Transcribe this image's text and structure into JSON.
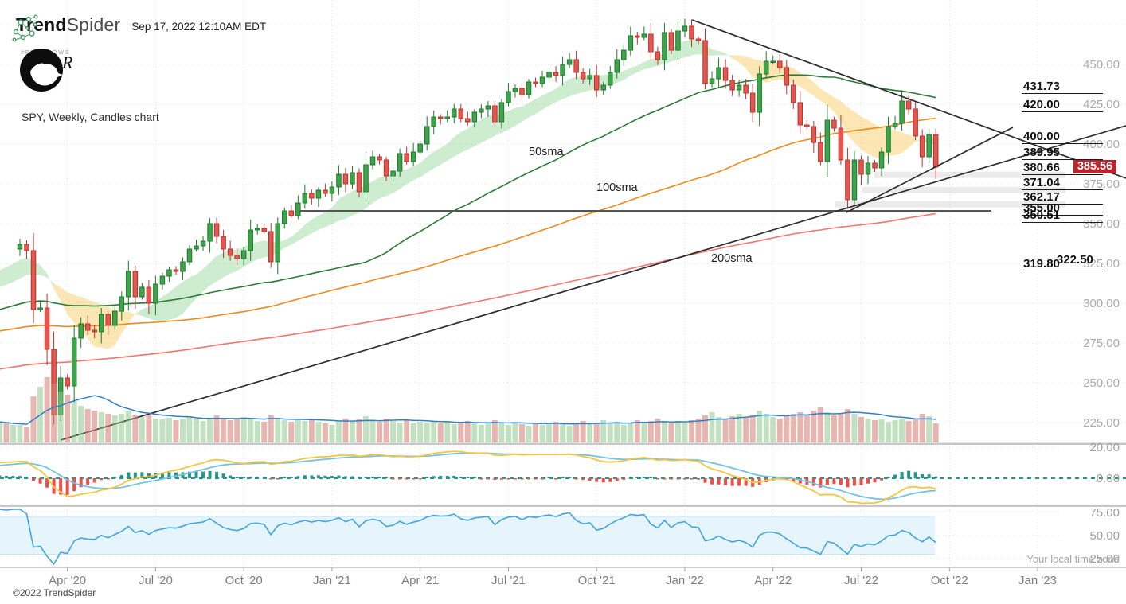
{
  "app": {
    "brand_bold": "Trend",
    "brand_light": "Spider",
    "timestamp": "Sep 17, 2022 12:10AM EDT"
  },
  "watermark": {
    "signature": "R",
    "caption": "#PECKNOWS"
  },
  "footer": {
    "copyright": "©2022 TrendSpider",
    "timezone_note": "Your local time zone"
  },
  "chart_data": {
    "type": "candlestick",
    "title": "SPY, Weekly, Candles chart",
    "symbol": "SPY",
    "timeframe": "Weekly",
    "last_price_label": "385.56",
    "last_price": 385.56,
    "y_axis": [
      450,
      425,
      400,
      375,
      350,
      325,
      300,
      275,
      250,
      225
    ],
    "x_ticks": [
      "Apr '20",
      "Jul '20",
      "Oct '20",
      "Jan '21",
      "Apr '21",
      "Jul '21",
      "Oct '21",
      "Jan '22",
      "Apr '22",
      "Jul '22",
      "Oct '22",
      "Jan '23"
    ],
    "sma_labels": [
      {
        "text": "50sma",
        "x": 664,
        "y": 183
      },
      {
        "text": "100sma",
        "x": 749,
        "y": 228
      },
      {
        "text": "200sma",
        "x": 893,
        "y": 317
      }
    ],
    "indicator_axis": {
      "macd": [
        {
          "label": "20.00",
          "y": 562
        },
        {
          "label": "0.00",
          "y": 601
        }
      ],
      "rsi": [
        {
          "label": "75.00",
          "y": 644
        },
        {
          "label": "50.00",
          "y": 673
        },
        {
          "label": "25.00",
          "y": 702
        }
      ]
    },
    "price_levels": [
      {
        "label": "431.73",
        "p": 431.73
      },
      {
        "label": "420.00",
        "p": 420.0
      },
      {
        "label": "400.00",
        "p": 400.0
      },
      {
        "label": "389.95",
        "p": 389.95
      },
      {
        "label": "380.66",
        "p": 380.66
      },
      {
        "label": "371.04",
        "p": 371.04
      },
      {
        "label": "362.17",
        "p": 362.17
      },
      {
        "label": "355.00",
        "p": 355.0
      },
      {
        "label": "350.51",
        "p": 350.51
      },
      {
        "label": "322.50",
        "p": 322.5,
        "tx": 1327,
        "lx": 1327,
        "lw": 58
      },
      {
        "label": "319.80",
        "p": 319.8
      }
    ],
    "sr_zones": [
      {
        "p": 380.66,
        "x": 1098,
        "x2": 1338
      },
      {
        "p": 371.04,
        "x": 1083,
        "x2": 1338
      },
      {
        "p": 362.17,
        "x": 1048,
        "x2": 1338
      }
    ],
    "trendlines": [
      {
        "name": "descending-resistance",
        "x1": 869,
        "y1": 25,
        "x2": 1414,
        "y2": 224
      },
      {
        "name": "long-ascending-support",
        "x1": 76,
        "y1": 553,
        "x2": 1414,
        "y2": 158
      },
      {
        "name": "steep-ascending-support",
        "x1": 1063,
        "y1": 267,
        "x2": 1272,
        "y2": 160
      }
    ],
    "horizontal_line": {
      "y": 265,
      "x1": 372,
      "x2": 1245
    },
    "closes": [
      337,
      333,
      296,
      297,
      271,
      230,
      253,
      248,
      278,
      287,
      283,
      282,
      293,
      286,
      295,
      304,
      320,
      304,
      310,
      300,
      312,
      317,
      321,
      320,
      326,
      334,
      336,
      339,
      350,
      342,
      334,
      330,
      328,
      333,
      346,
      347,
      345,
      326,
      350,
      358,
      355,
      363,
      369,
      366,
      371,
      369,
      373,
      381,
      375,
      382,
      370,
      387,
      392,
      390,
      380,
      383,
      394,
      389,
      395,
      400,
      411,
      417,
      416,
      417,
      422,
      416,
      414,
      420,
      422,
      424,
      414,
      426,
      433,
      435,
      431,
      439,
      438,
      442,
      445,
      443,
      450,
      453,
      445,
      441,
      443,
      434,
      437,
      445,
      453,
      459,
      468,
      467,
      469,
      458,
      453,
      470,
      459,
      471,
      474,
      466,
      465,
      438,
      441,
      448,
      440,
      434,
      437,
      432,
      420,
      444,
      452,
      452,
      448,
      437,
      426,
      412,
      411,
      401,
      389,
      415,
      410,
      390,
      365,
      390,
      381,
      388,
      385,
      395,
      411,
      413,
      427,
      422,
      405,
      392,
      406,
      385.56
    ],
    "volumes": [
      22,
      20,
      58,
      70,
      82,
      74,
      64,
      60,
      52,
      46,
      42,
      40,
      38,
      36,
      34,
      36,
      40,
      34,
      32,
      35,
      30,
      29,
      31,
      28,
      30,
      33,
      29,
      27,
      31,
      34,
      30,
      28,
      30,
      32,
      29,
      27,
      26,
      34,
      31,
      28,
      26,
      29,
      27,
      30,
      26,
      24,
      22,
      28,
      30,
      27,
      29,
      33,
      28,
      26,
      30,
      27,
      25,
      28,
      24,
      26,
      25,
      27,
      24,
      26,
      23,
      25,
      27,
      24,
      22,
      25,
      28,
      24,
      22,
      26,
      23,
      21,
      25,
      22,
      24,
      26,
      23,
      21,
      24,
      27,
      23,
      25,
      28,
      24,
      26,
      22,
      25,
      28,
      25,
      27,
      30,
      26,
      24,
      27,
      25,
      28,
      30,
      34,
      38,
      32,
      30,
      33,
      36,
      31,
      35,
      40,
      36,
      32,
      30,
      33,
      36,
      38,
      35,
      40,
      44,
      38,
      34,
      36,
      42,
      36,
      32,
      30,
      28,
      30,
      26,
      28,
      30,
      27,
      29,
      36,
      33,
      24
    ],
    "ma_history": [
      192,
      194,
      190,
      188,
      186,
      189,
      193,
      196,
      199,
      202,
      204,
      203,
      205,
      206,
      204,
      207,
      205,
      208,
      209,
      207,
      210,
      204,
      198,
      205,
      209,
      212,
      214,
      216,
      217,
      216,
      218,
      217,
      216,
      218,
      217,
      215,
      216,
      214,
      213,
      215,
      213,
      212,
      210,
      208,
      213,
      218,
      220,
      221,
      222,
      224,
      225,
      227,
      227,
      228,
      229,
      230,
      229,
      231,
      233,
      235,
      236,
      235,
      237,
      236,
      235,
      237,
      238,
      239,
      238,
      240,
      241,
      242,
      243,
      242,
      244,
      243,
      245,
      246,
      244,
      246,
      247,
      248,
      247,
      249,
      246,
      248,
      250,
      251,
      250,
      252,
      254,
      255,
      256,
      257,
      258,
      257,
      259,
      260,
      262,
      263,
      264,
      266,
      265,
      267,
      270,
      275,
      278,
      270,
      263,
      269,
      272,
      268,
      265,
      270,
      261,
      264,
      266,
      259,
      263,
      265,
      268,
      270,
      266,
      271,
      273,
      274,
      270,
      274,
      276,
      275,
      277,
      278,
      281,
      283,
      285,
      284,
      287,
      289,
      290,
      289,
      291,
      287,
      276,
      270,
      274,
      265,
      270,
      273,
      264,
      260,
      265,
      250,
      240,
      234,
      240,
      248,
      253,
      258,
      262,
      263,
      266,
      270,
      272,
      274,
      277,
      279,
      274,
      280,
      282,
      284,
      286,
      288,
      290,
      285,
      287,
      292,
      285,
      275,
      282,
      288,
      293,
      296,
      298,
      299,
      295,
      285,
      292,
      288,
      290,
      294,
      292,
      298,
      301,
      297,
      295,
      288,
      294,
      298,
      302,
      304,
      306,
      309,
      311,
      312,
      314,
      318,
      320,
      321,
      322,
      327,
      330,
      332,
      331,
      334
    ],
    "colors": {
      "candle_up": "#3fa34d",
      "candle_up_stroke": "#1e7a29",
      "candle_down": "#e4574f",
      "candle_down_stroke": "#b5352e",
      "cloud_bull": "rgba(144,213,150,0.45)",
      "cloud_bear": "rgba(248,205,106,0.5)",
      "sma50": "#2c7a36",
      "sma100": "#f0891c",
      "sma200": "#f4756c",
      "vol_up": "rgba(142,200,140,0.55)",
      "vol_down": "rgba(215,133,124,0.6)",
      "vol_ma": "#2f80c9",
      "macd_line": "#f3c63f",
      "signal_line": "#74c3e3",
      "hist_up": "#23988a",
      "hist_down": "#e9504a",
      "rsi_line": "#41a4de",
      "rsi_band": "#e6f5fc",
      "rsi_band_edge": "#c2e5f5",
      "trendline": "#2e2e2e",
      "level_line": "#1a1a1a",
      "badge": "#b9252b",
      "logo_green": "#4a9e6b"
    }
  }
}
